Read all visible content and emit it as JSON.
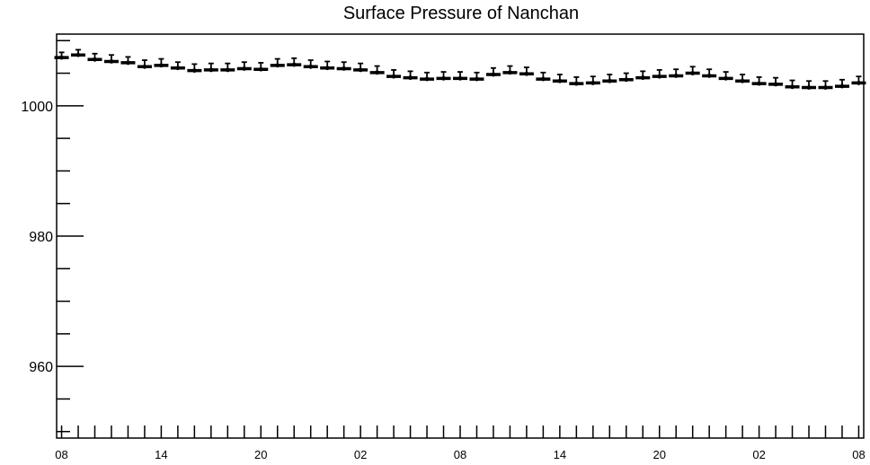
{
  "chart_data": {
    "type": "scatter",
    "title": "Surface Pressure of Nanchan",
    "xlabel": "",
    "ylabel": "",
    "ylim": [
      949,
      1011
    ],
    "xlim": [
      -0.3,
      48.3
    ],
    "grid": false,
    "error_bars": true,
    "x_tick_labels": [
      "08",
      "14",
      "20",
      "02",
      "08",
      "14",
      "20",
      "02",
      "08"
    ],
    "x_tick_label_hours": [
      0,
      6,
      12,
      18,
      24,
      30,
      36,
      42,
      48
    ],
    "y_major_ticks": [
      960,
      980,
      1000
    ],
    "y_minor_step": 5,
    "x_hours": [
      0,
      1,
      2,
      3,
      4,
      5,
      6,
      7,
      8,
      9,
      10,
      11,
      12,
      13,
      14,
      15,
      16,
      17,
      18,
      19,
      20,
      21,
      22,
      23,
      24,
      25,
      26,
      27,
      28,
      29,
      30,
      31,
      32,
      33,
      34,
      35,
      36,
      37,
      38,
      39,
      40,
      41,
      42,
      43,
      44,
      45,
      46,
      47,
      48
    ],
    "values": [
      1007.4,
      1007.8,
      1007.1,
      1006.8,
      1006.6,
      1006.0,
      1006.2,
      1005.8,
      1005.4,
      1005.5,
      1005.5,
      1005.7,
      1005.6,
      1006.2,
      1006.3,
      1006.0,
      1005.8,
      1005.7,
      1005.5,
      1005.1,
      1004.5,
      1004.3,
      1004.1,
      1004.2,
      1004.2,
      1004.1,
      1004.8,
      1005.1,
      1004.9,
      1004.1,
      1003.8,
      1003.4,
      1003.5,
      1003.8,
      1004.0,
      1004.3,
      1004.5,
      1004.6,
      1005.0,
      1004.6,
      1004.2,
      1003.8,
      1003.4,
      1003.3,
      1002.9,
      1002.8,
      1002.8,
      1003.0,
      1003.5
    ],
    "error_up": [
      0.8,
      0.8,
      0.9,
      1.0,
      0.9,
      1.0,
      1.0,
      0.9,
      1.0,
      1.0,
      1.0,
      1.0,
      1.0,
      1.0,
      1.0,
      1.0,
      1.0,
      1.0,
      1.0,
      1.0,
      1.0,
      1.0,
      1.0,
      1.0,
      1.0,
      1.0,
      1.0,
      1.0,
      1.0,
      1.0,
      1.0,
      1.0,
      1.0,
      1.0,
      1.0,
      1.0,
      1.0,
      1.0,
      1.0,
      1.0,
      1.0,
      1.0,
      1.0,
      1.0,
      1.0,
      1.0,
      1.0,
      1.0,
      1.0
    ]
  }
}
